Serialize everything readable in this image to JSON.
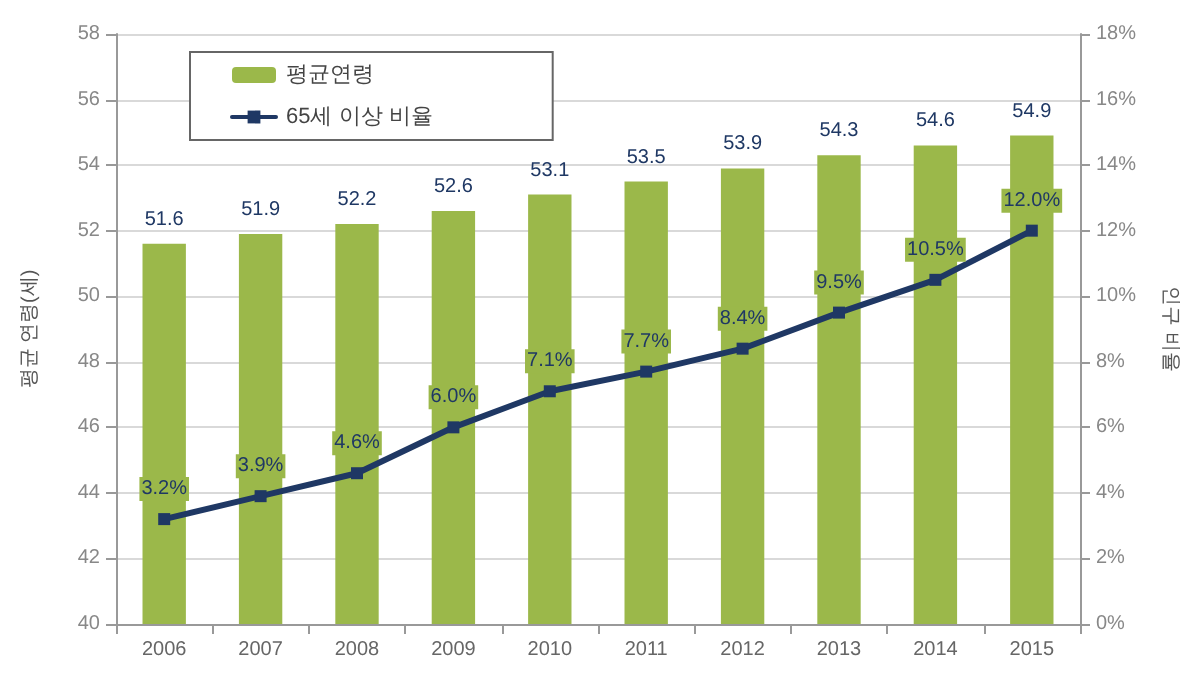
{
  "chart_data": {
    "type": "bar",
    "categories": [
      "2006",
      "2007",
      "2008",
      "2009",
      "2010",
      "2011",
      "2012",
      "2013",
      "2014",
      "2015"
    ],
    "series": [
      {
        "name": "평균연령",
        "color": "#9bb84a",
        "values": [
          51.6,
          51.9,
          52.2,
          52.6,
          53.1,
          53.5,
          53.9,
          54.3,
          54.6,
          54.9
        ],
        "value_labels": [
          "51.6",
          "51.9",
          "52.2",
          "52.6",
          "53.1",
          "53.5",
          "53.9",
          "54.3",
          "54.6",
          "54.9"
        ]
      },
      {
        "name": "65세 이상 비율",
        "type": "line",
        "axis": "y2",
        "color": "#1f3864",
        "marker": "square",
        "values": [
          3.2,
          3.9,
          4.6,
          6.0,
          7.1,
          7.7,
          8.4,
          9.5,
          10.5,
          12.0
        ],
        "value_labels": [
          "3.2%",
          "3.9%",
          "4.6%",
          "6.0%",
          "7.1%",
          "7.7%",
          "8.4%",
          "9.5%",
          "10.5%",
          "12.0%"
        ]
      }
    ],
    "ylabel": "평균 연령(세)",
    "y2label": "인구 비율",
    "ylim": [
      40,
      58
    ],
    "yticks": [
      40,
      42,
      44,
      46,
      48,
      50,
      52,
      54,
      56,
      58
    ],
    "y2lim": [
      0,
      18
    ],
    "y2ticks": [
      {
        "value": 0,
        "label": "0%"
      },
      {
        "value": 2,
        "label": "2%"
      },
      {
        "value": 4,
        "label": "4%"
      },
      {
        "value": 6,
        "label": "6%"
      },
      {
        "value": 8,
        "label": "8%"
      },
      {
        "value": 10,
        "label": "10%"
      },
      {
        "value": 12,
        "label": "12%"
      },
      {
        "value": 14,
        "label": "14%"
      },
      {
        "value": 16,
        "label": "16%"
      },
      {
        "value": 18,
        "label": "18%"
      }
    ],
    "grid": "y",
    "legend": "top left"
  }
}
